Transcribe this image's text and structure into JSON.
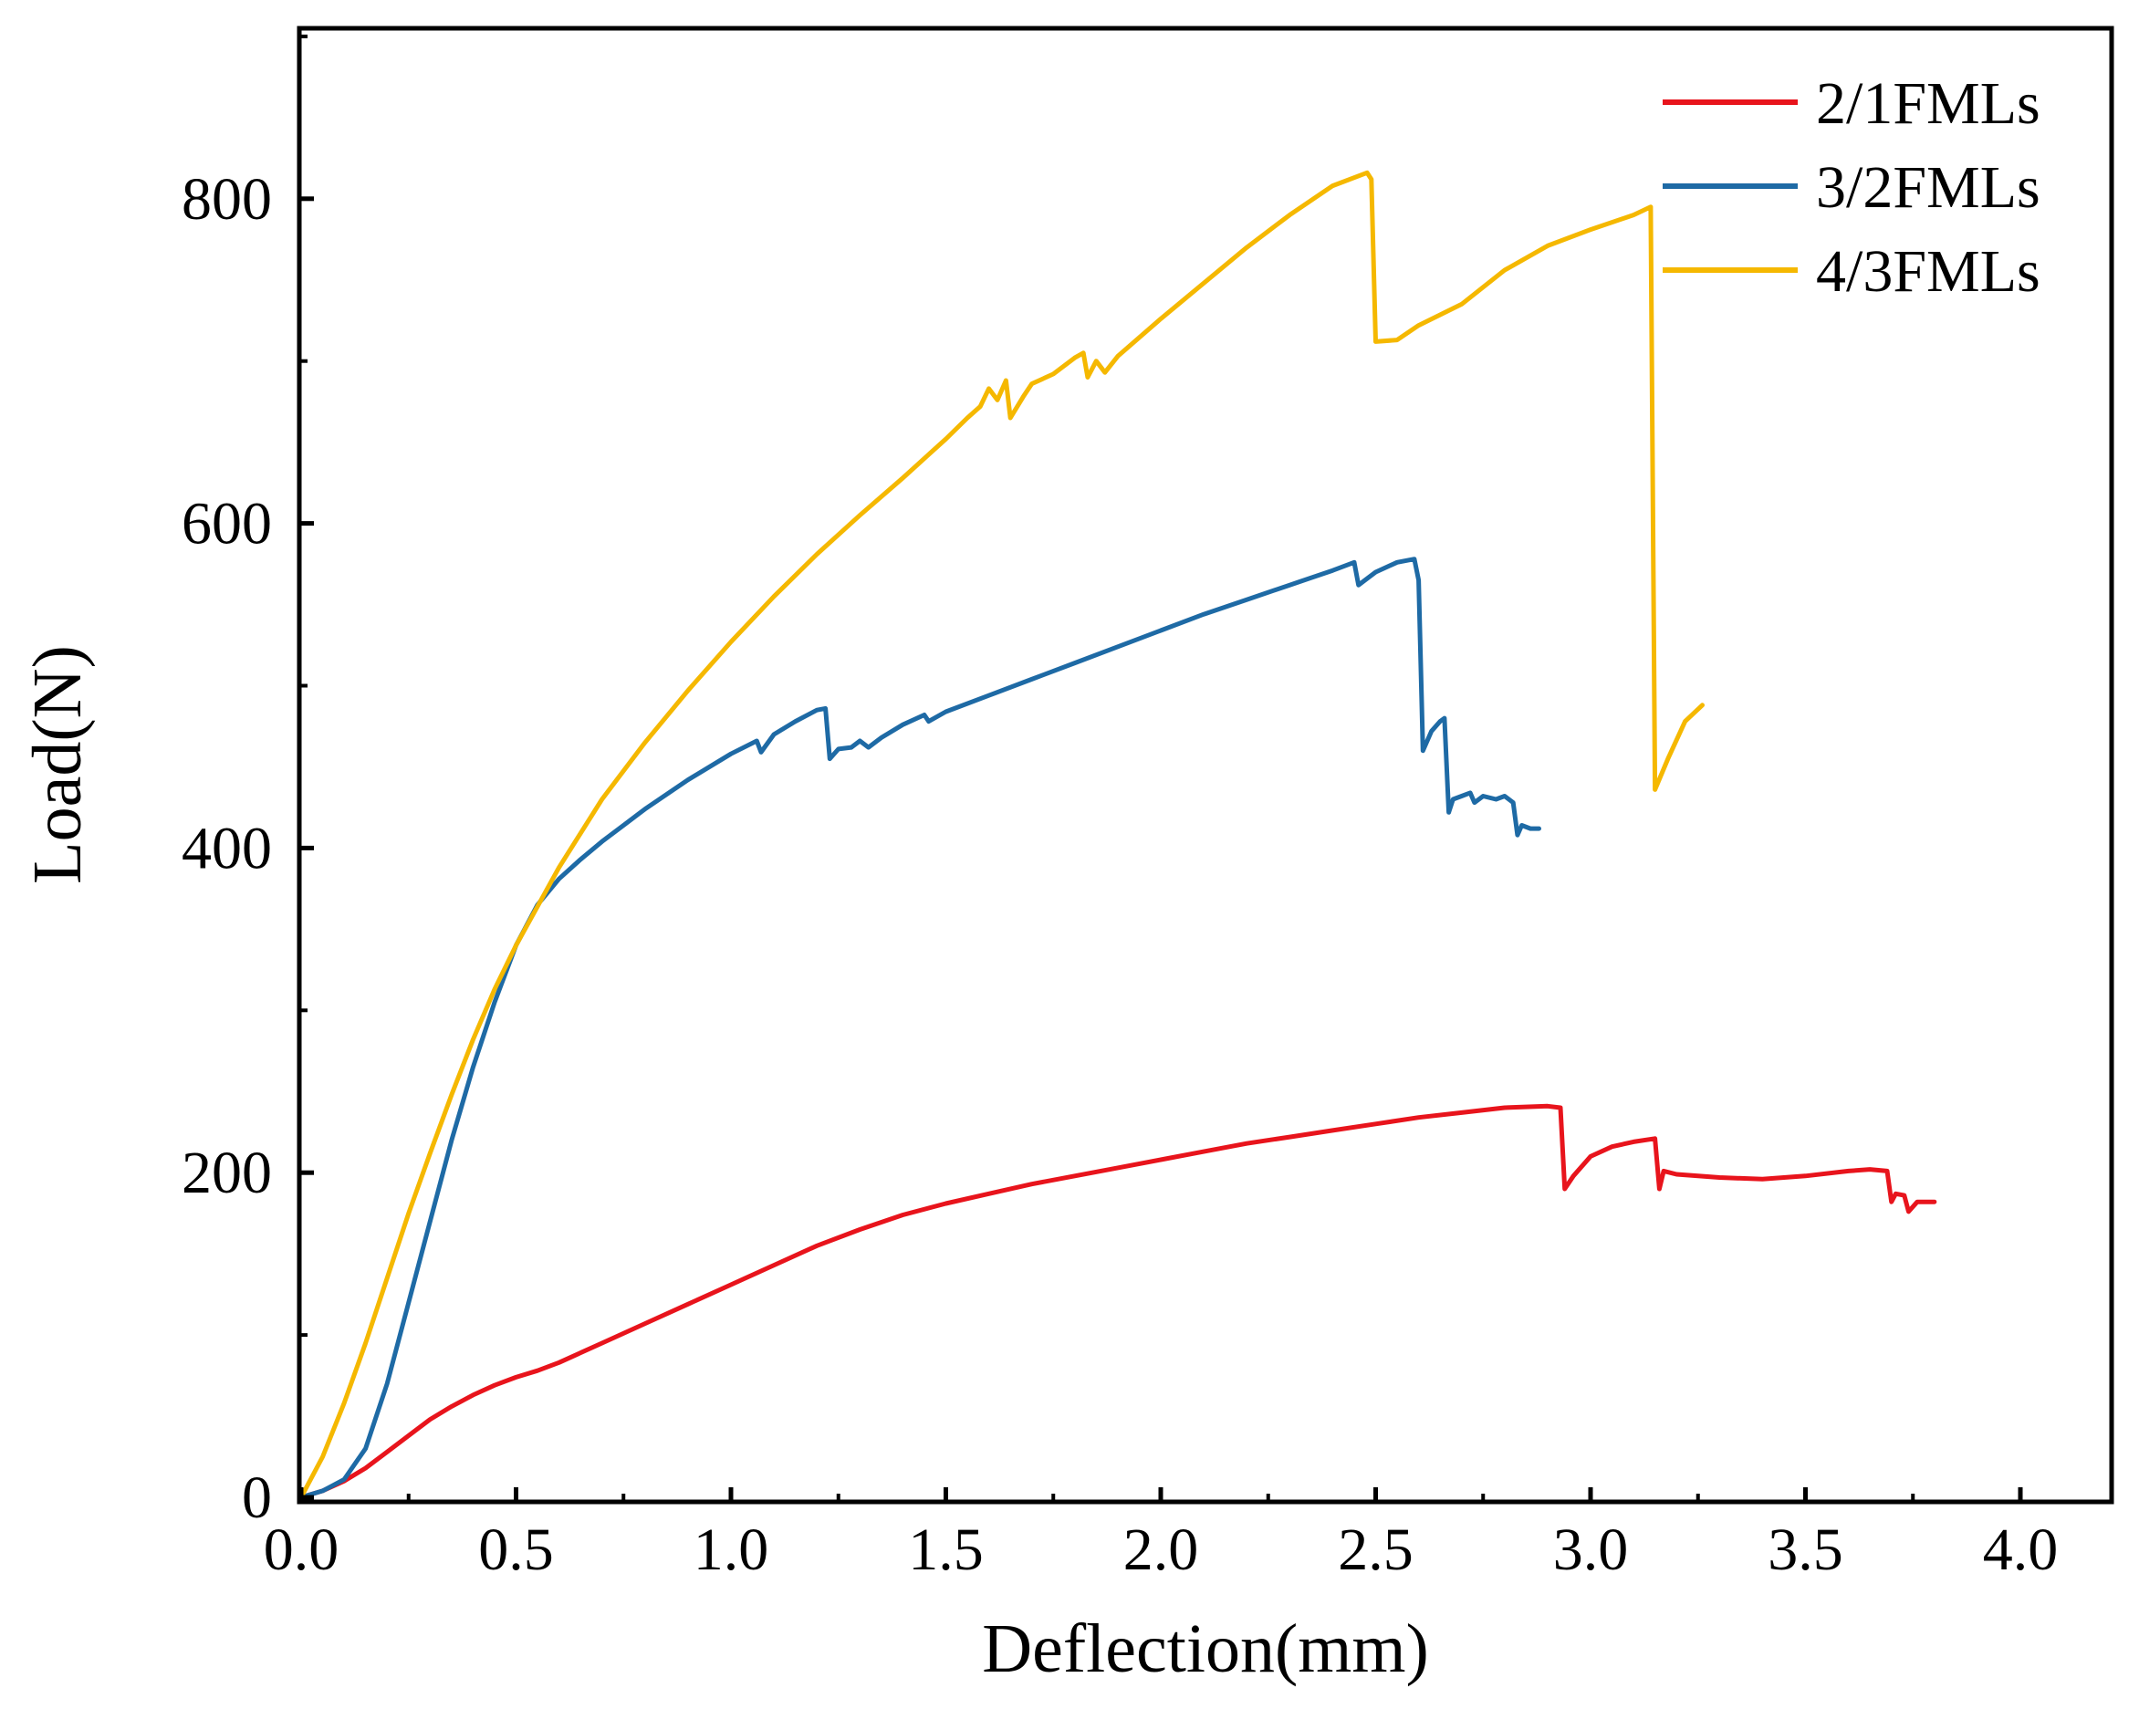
{
  "chart_data": {
    "type": "line",
    "title": "",
    "xlabel": "Deflection(mm)",
    "ylabel": "Load(N)",
    "xlim": [
      0.0,
      4.25
    ],
    "ylim": [
      0,
      920
    ],
    "x_ticks": [
      "0.0",
      "0.5",
      "1.0",
      "1.5",
      "2.0",
      "2.5",
      "3.0",
      "3.5",
      "4.0"
    ],
    "x_tick_values": [
      0.0,
      0.5,
      1.0,
      1.5,
      2.0,
      2.5,
      3.0,
      3.5,
      4.0
    ],
    "y_ticks": [
      "0",
      "200",
      "400",
      "600",
      "800"
    ],
    "y_tick_values": [
      0,
      200,
      400,
      600,
      800
    ],
    "grid": false,
    "legend_position": "top-right",
    "series": [
      {
        "name": "2/1FMLs",
        "color": "#e8141c",
        "points": [
          [
            0.0,
            0
          ],
          [
            0.05,
            4
          ],
          [
            0.1,
            10
          ],
          [
            0.15,
            18
          ],
          [
            0.2,
            28
          ],
          [
            0.25,
            38
          ],
          [
            0.3,
            48
          ],
          [
            0.35,
            56
          ],
          [
            0.4,
            63
          ],
          [
            0.45,
            69
          ],
          [
            0.5,
            74
          ],
          [
            0.55,
            78
          ],
          [
            0.6,
            83
          ],
          [
            0.7,
            95
          ],
          [
            0.8,
            107
          ],
          [
            0.9,
            119
          ],
          [
            1.0,
            131
          ],
          [
            1.1,
            143
          ],
          [
            1.2,
            155
          ],
          [
            1.3,
            165
          ],
          [
            1.4,
            174
          ],
          [
            1.5,
            181
          ],
          [
            1.6,
            187
          ],
          [
            1.7,
            193
          ],
          [
            1.8,
            198
          ],
          [
            1.9,
            203
          ],
          [
            2.0,
            208
          ],
          [
            2.1,
            213
          ],
          [
            2.2,
            218
          ],
          [
            2.3,
            222
          ],
          [
            2.4,
            226
          ],
          [
            2.5,
            230
          ],
          [
            2.6,
            234
          ],
          [
            2.7,
            237
          ],
          [
            2.8,
            240
          ],
          [
            2.9,
            241
          ],
          [
            2.93,
            240
          ],
          [
            2.94,
            190
          ],
          [
            2.96,
            198
          ],
          [
            3.0,
            210
          ],
          [
            3.05,
            216
          ],
          [
            3.1,
            219
          ],
          [
            3.15,
            221
          ],
          [
            3.16,
            190
          ],
          [
            3.17,
            201
          ],
          [
            3.2,
            199
          ],
          [
            3.3,
            197
          ],
          [
            3.4,
            196
          ],
          [
            3.5,
            198
          ],
          [
            3.6,
            201
          ],
          [
            3.65,
            202
          ],
          [
            3.69,
            201
          ],
          [
            3.7,
            182
          ],
          [
            3.71,
            187
          ],
          [
            3.73,
            186
          ],
          [
            3.74,
            176
          ],
          [
            3.76,
            182
          ],
          [
            3.8,
            182
          ]
        ]
      },
      {
        "name": "3/2FMLs",
        "color": "#1e6aa5",
        "points": [
          [
            0.0,
            0
          ],
          [
            0.05,
            4
          ],
          [
            0.1,
            11
          ],
          [
            0.15,
            30
          ],
          [
            0.2,
            70
          ],
          [
            0.25,
            120
          ],
          [
            0.3,
            170
          ],
          [
            0.35,
            220
          ],
          [
            0.4,
            265
          ],
          [
            0.45,
            305
          ],
          [
            0.5,
            340
          ],
          [
            0.55,
            365
          ],
          [
            0.6,
            381
          ],
          [
            0.65,
            393
          ],
          [
            0.7,
            404
          ],
          [
            0.75,
            414
          ],
          [
            0.8,
            424
          ],
          [
            0.9,
            442
          ],
          [
            1.0,
            458
          ],
          [
            1.06,
            466
          ],
          [
            1.07,
            459
          ],
          [
            1.1,
            470
          ],
          [
            1.15,
            478
          ],
          [
            1.2,
            485
          ],
          [
            1.22,
            486
          ],
          [
            1.23,
            455
          ],
          [
            1.25,
            461
          ],
          [
            1.28,
            462
          ],
          [
            1.3,
            466
          ],
          [
            1.32,
            462
          ],
          [
            1.35,
            468
          ],
          [
            1.4,
            476
          ],
          [
            1.45,
            482
          ],
          [
            1.46,
            478
          ],
          [
            1.5,
            484
          ],
          [
            1.6,
            494
          ],
          [
            1.7,
            504
          ],
          [
            1.8,
            514
          ],
          [
            1.9,
            524
          ],
          [
            2.0,
            534
          ],
          [
            2.1,
            544
          ],
          [
            2.2,
            553
          ],
          [
            2.3,
            562
          ],
          [
            2.4,
            571
          ],
          [
            2.45,
            576
          ],
          [
            2.46,
            562
          ],
          [
            2.5,
            570
          ],
          [
            2.55,
            576
          ],
          [
            2.59,
            578
          ],
          [
            2.6,
            565
          ],
          [
            2.61,
            460
          ],
          [
            2.63,
            472
          ],
          [
            2.65,
            478
          ],
          [
            2.66,
            480
          ],
          [
            2.67,
            422
          ],
          [
            2.68,
            430
          ],
          [
            2.7,
            432
          ],
          [
            2.72,
            434
          ],
          [
            2.73,
            428
          ],
          [
            2.75,
            432
          ],
          [
            2.78,
            430
          ],
          [
            2.8,
            432
          ],
          [
            2.82,
            428
          ],
          [
            2.83,
            408
          ],
          [
            2.84,
            414
          ],
          [
            2.86,
            412
          ],
          [
            2.88,
            412
          ]
        ]
      },
      {
        "name": "4/3FMLs",
        "color": "#f5b800",
        "points": [
          [
            0.0,
            0
          ],
          [
            0.05,
            25
          ],
          [
            0.1,
            58
          ],
          [
            0.15,
            95
          ],
          [
            0.2,
            135
          ],
          [
            0.25,
            175
          ],
          [
            0.3,
            212
          ],
          [
            0.35,
            248
          ],
          [
            0.4,
            282
          ],
          [
            0.45,
            313
          ],
          [
            0.5,
            340
          ],
          [
            0.6,
            388
          ],
          [
            0.7,
            430
          ],
          [
            0.8,
            465
          ],
          [
            0.9,
            497
          ],
          [
            1.0,
            527
          ],
          [
            1.1,
            555
          ],
          [
            1.2,
            581
          ],
          [
            1.3,
            605
          ],
          [
            1.4,
            628
          ],
          [
            1.5,
            652
          ],
          [
            1.55,
            665
          ],
          [
            1.58,
            672
          ],
          [
            1.6,
            683
          ],
          [
            1.62,
            676
          ],
          [
            1.64,
            688
          ],
          [
            1.65,
            665
          ],
          [
            1.68,
            678
          ],
          [
            1.7,
            686
          ],
          [
            1.75,
            692
          ],
          [
            1.8,
            702
          ],
          [
            1.82,
            705
          ],
          [
            1.83,
            690
          ],
          [
            1.85,
            700
          ],
          [
            1.87,
            693
          ],
          [
            1.9,
            703
          ],
          [
            2.0,
            726
          ],
          [
            2.1,
            748
          ],
          [
            2.2,
            770
          ],
          [
            2.3,
            790
          ],
          [
            2.4,
            808
          ],
          [
            2.48,
            816
          ],
          [
            2.49,
            812
          ],
          [
            2.5,
            712
          ],
          [
            2.55,
            713
          ],
          [
            2.6,
            722
          ],
          [
            2.7,
            735
          ],
          [
            2.8,
            756
          ],
          [
            2.9,
            771
          ],
          [
            3.0,
            781
          ],
          [
            3.1,
            790
          ],
          [
            3.14,
            795
          ],
          [
            3.15,
            436
          ],
          [
            3.18,
            455
          ],
          [
            3.22,
            478
          ],
          [
            3.26,
            488
          ]
        ]
      }
    ]
  }
}
